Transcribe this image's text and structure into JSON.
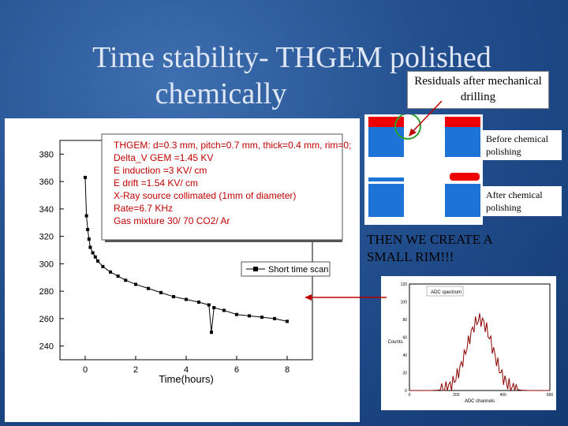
{
  "slide": {
    "title_line1": "Time stability- THGEM polished",
    "title_line2": "chemically",
    "residuals_label": "Residuals after mechanical drilling",
    "before_label": "Before chemical polishing",
    "after_label": "After chemical polishing",
    "rim_note": "THEN WE CREATE A SMALL RIM!!!"
  },
  "chart_data": [
    {
      "type": "scatter",
      "title": "",
      "xlabel": "Time(hours)",
      "ylabel": "",
      "xlim": [
        -1,
        9
      ],
      "ylim": [
        230,
        390
      ],
      "x_ticks": [
        "0",
        "2",
        "4",
        "6",
        "8"
      ],
      "y_ticks": [
        "240",
        "260",
        "280",
        "300",
        "320",
        "340",
        "360",
        "380"
      ],
      "annotation_lines": [
        "THGEM: d=0.3 mm, pitch=0.7 mm, thick=0.4 mm, rim=0;",
        "Delta_V GEM =1.45 KV",
        "E induction =3 KV/ cm",
        "E drift =1.54 KV/ cm",
        "X-Ray source collimated (1mm of diameter)",
        "Rate=6.7 KHz",
        "Gas mixture 30/ 70 CO2/ Ar"
      ],
      "legend": "Short time scan",
      "series": [
        {
          "x": [
            0,
            0.05,
            0.1,
            0.15,
            0.2,
            0.3,
            0.4,
            0.5,
            0.7,
            1.0,
            1.3,
            1.6,
            2.0,
            2.5,
            3.0,
            3.5,
            4.0,
            4.5,
            4.9,
            5.0,
            5.1,
            5.5,
            6.0,
            6.5,
            7.0,
            7.5,
            8.0
          ],
          "y": [
            363,
            335,
            325,
            318,
            312,
            308,
            305,
            302,
            298,
            294,
            291,
            288,
            285,
            282,
            279,
            276,
            274,
            272,
            270,
            250,
            268,
            266,
            263,
            262,
            261,
            260,
            258
          ]
        }
      ]
    },
    {
      "type": "line",
      "title": "",
      "legend": "ADC spectrum",
      "xlabel": "ADC channels",
      "ylabel": "Counts",
      "x_ticks": [
        "0",
        "200",
        "400",
        "600"
      ],
      "y_ticks": [
        "0",
        "20",
        "40",
        "60",
        "80",
        "100",
        "120"
      ],
      "xlim": [
        0,
        600
      ],
      "ylim": [
        0,
        120
      ]
    }
  ]
}
